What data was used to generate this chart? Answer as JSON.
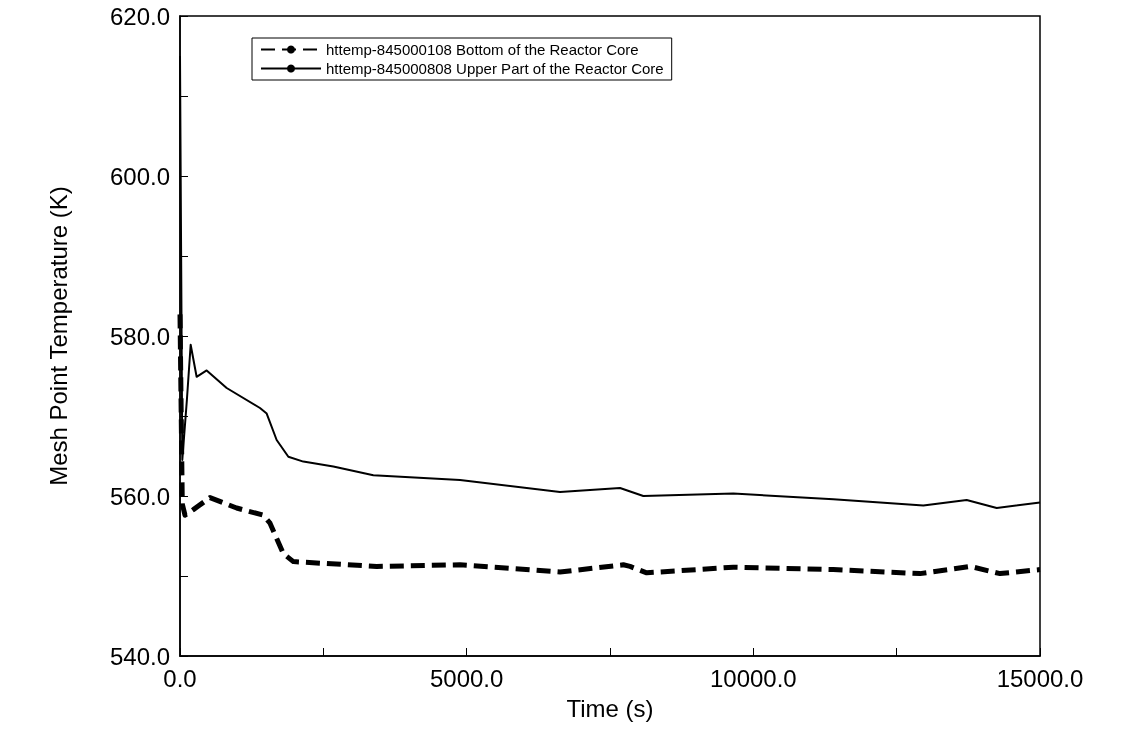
{
  "chart_data": {
    "type": "line",
    "xlabel": "Time (s)",
    "ylabel": "Mesh Point Temperature (K)",
    "xlim": [
      0,
      15000
    ],
    "xticks": [
      {
        "value": 0,
        "label": "0.0"
      },
      {
        "value": 2500,
        "label": null
      },
      {
        "value": 5000,
        "label": "5000.0"
      },
      {
        "value": 7500,
        "label": null
      },
      {
        "value": 10000,
        "label": "10000.0"
      },
      {
        "value": 12500,
        "label": null
      },
      {
        "value": 15000,
        "label": "15000.0"
      }
    ],
    "ylim": [
      540,
      620
    ],
    "yticks": [
      {
        "value": 540,
        "label": "540.0"
      },
      {
        "value": 550,
        "label": null
      },
      {
        "value": 560,
        "label": "560.0"
      },
      {
        "value": 570,
        "label": null
      },
      {
        "value": 580,
        "label": "580.0"
      },
      {
        "value": 590,
        "label": null
      },
      {
        "value": 600,
        "label": "600.0"
      },
      {
        "value": 610,
        "label": null
      },
      {
        "value": 620,
        "label": "620.0"
      }
    ],
    "grid": false,
    "legend": "top left",
    "marker": "none",
    "series": [
      {
        "name": "httemp-845000108 Bottom of the Reactor Core",
        "color": "#000000",
        "line_style": "dashed",
        "x": [
          0,
          40,
          87,
          233,
          523,
          988,
          1453,
          1570,
          1802,
          1977,
          3430,
          4884,
          6628,
          7733,
          7850,
          8140,
          9651,
          11395,
          12907,
          13779,
          14303,
          15000
        ],
        "values": [
          582.7,
          559,
          557.6,
          558.3,
          559.8,
          558.5,
          557.6,
          556.6,
          552.8,
          551.8,
          551.2,
          551.4,
          550.5,
          551.4,
          551.2,
          550.4,
          551.1,
          550.8,
          550.3,
          551.2,
          550.3,
          550.8
        ]
      },
      {
        "name": "httemp-845000808 Upper Part of the Reactor Core",
        "color": "#000000",
        "line_style": "solid",
        "x": [
          0,
          40,
          120,
          186,
          290,
          465,
          814,
          1395,
          1512,
          1686,
          1890,
          2151,
          2674,
          3372,
          4884,
          6628,
          7675,
          8081,
          9651,
          11395,
          12965,
          13721,
          14245,
          15000
        ],
        "values": [
          615,
          564.5,
          572,
          578.9,
          574.9,
          575.7,
          573.5,
          571,
          570.3,
          567,
          564.9,
          564.3,
          563.7,
          562.6,
          562,
          560.5,
          561,
          560,
          560.3,
          559.6,
          558.8,
          559.5,
          558.5,
          559.2
        ]
      }
    ]
  }
}
